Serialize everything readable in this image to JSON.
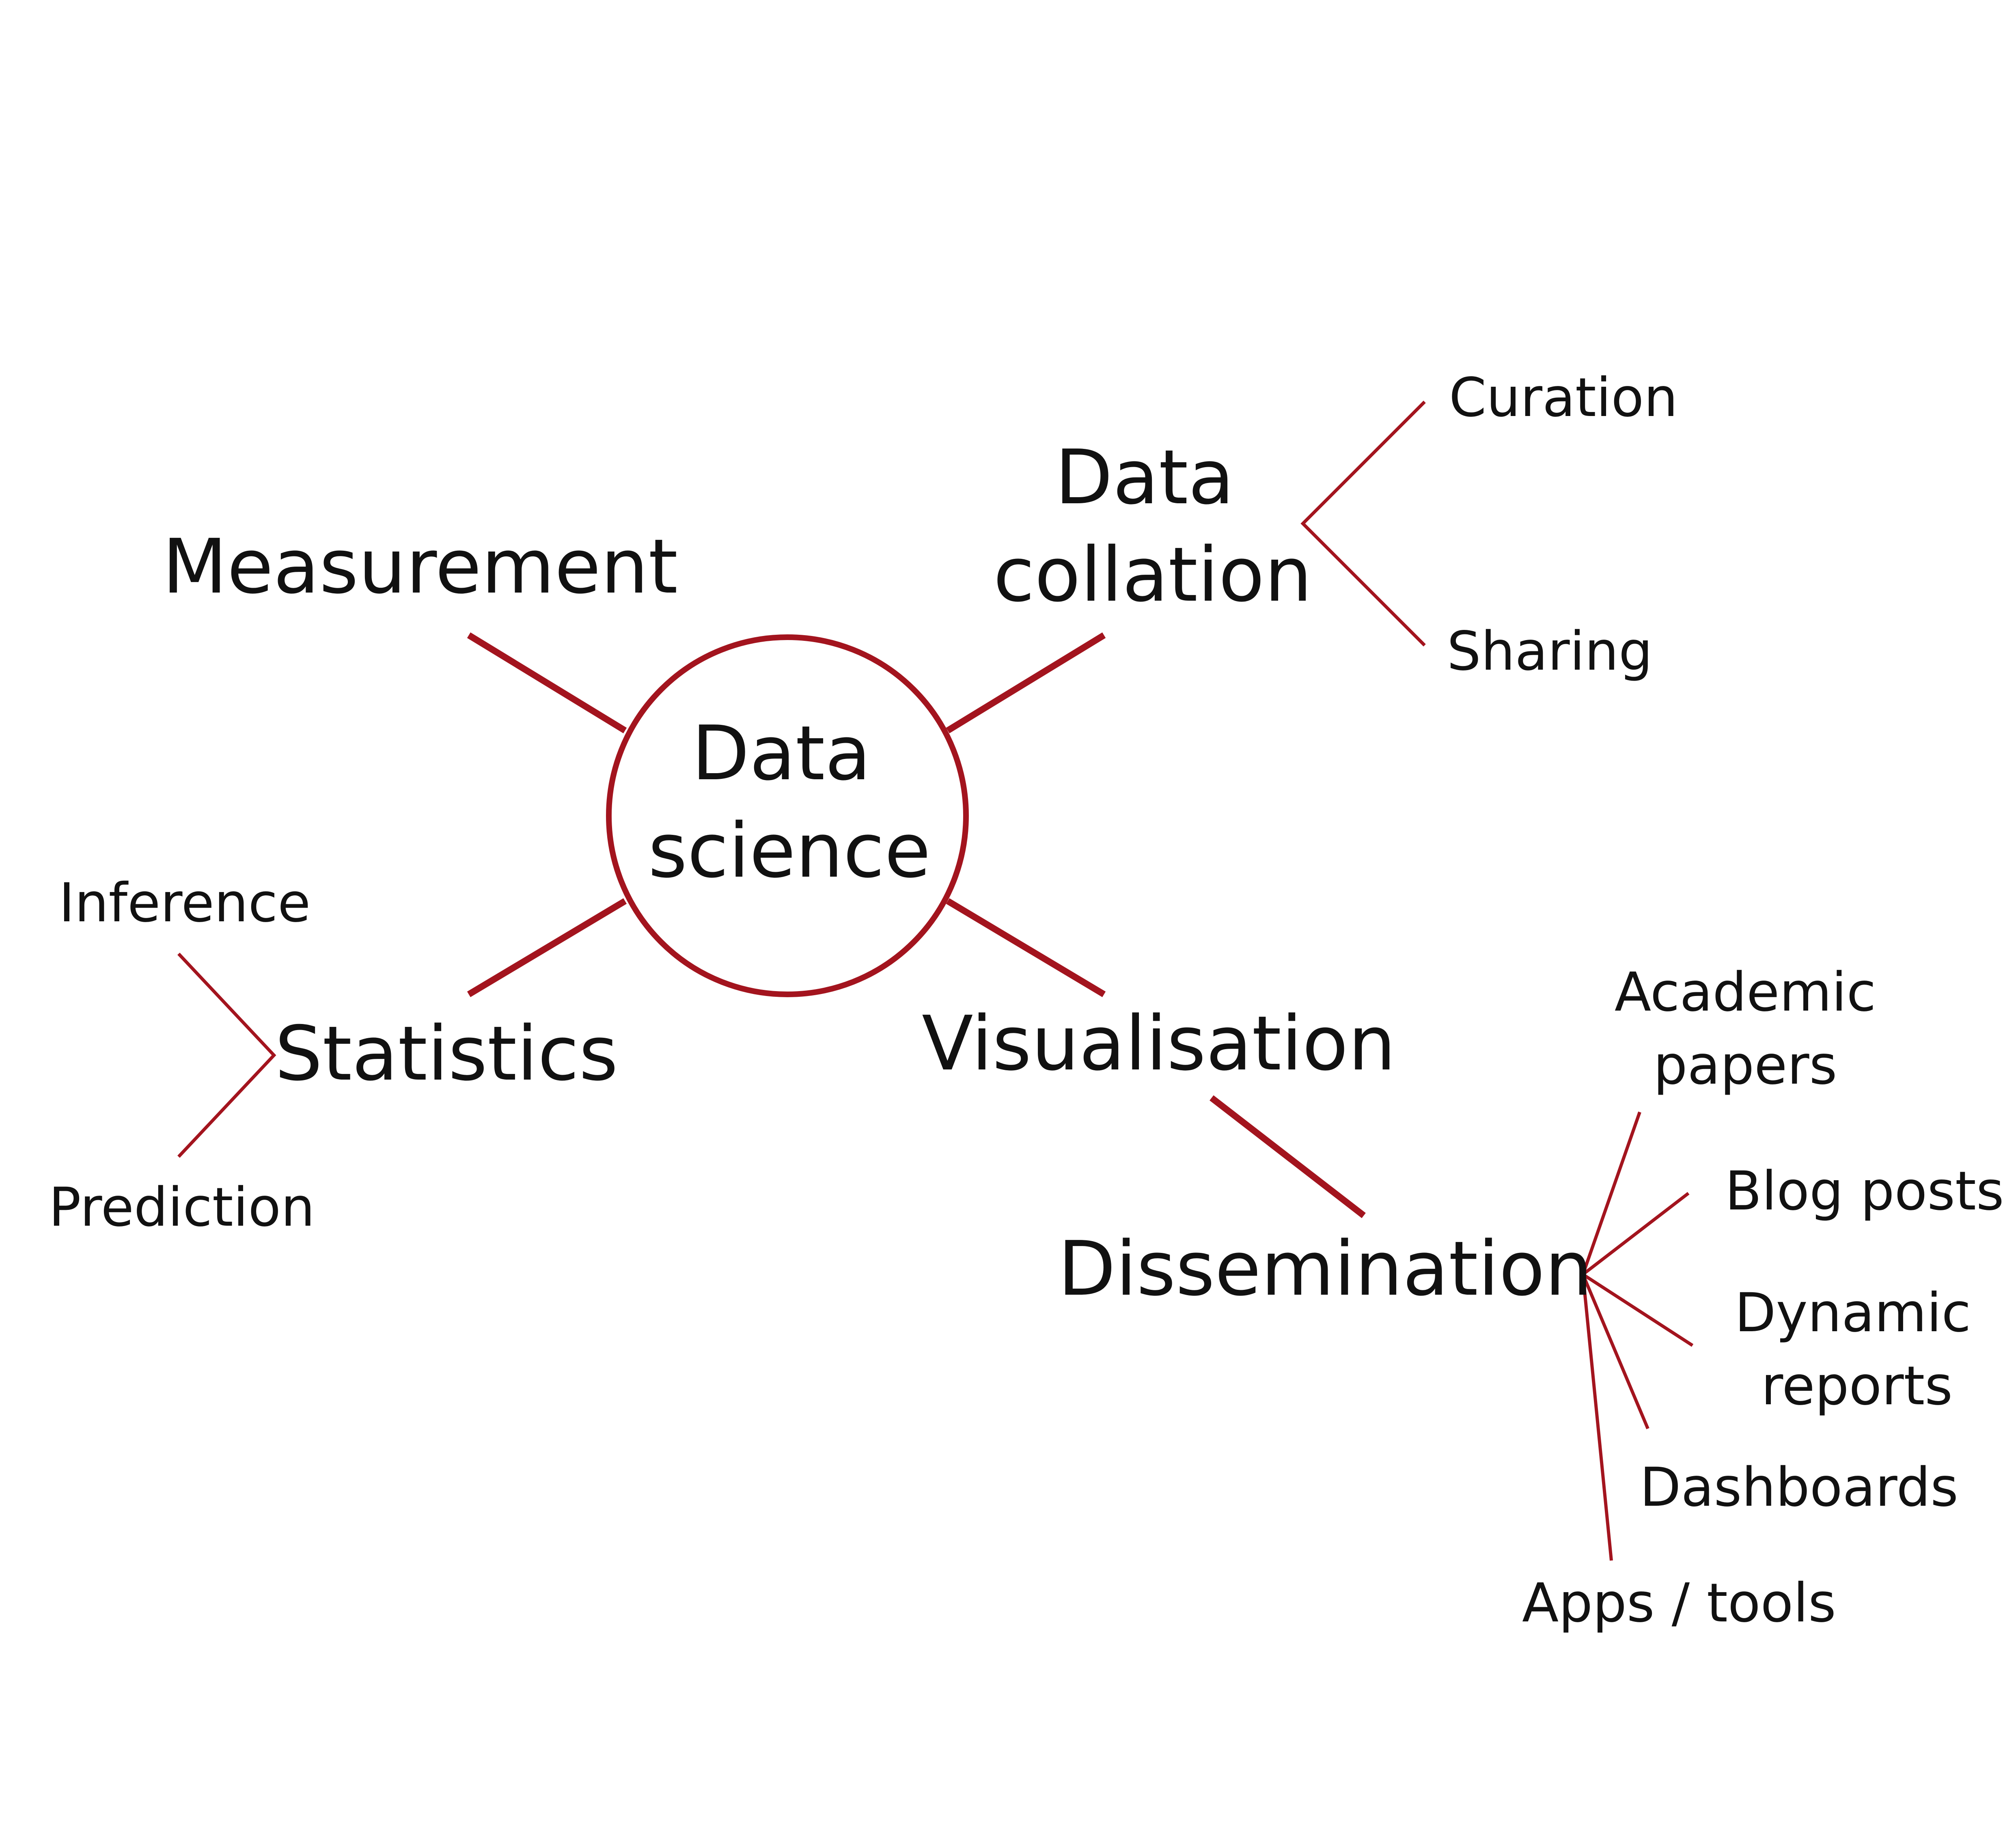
{
  "colors": {
    "line": "#A3141E",
    "text": "#111111",
    "background": "#FFFFFF"
  },
  "center": {
    "line1": "Data",
    "line2": "science"
  },
  "branches": {
    "measurement": "Measurement",
    "data_collation": {
      "line1": "Data",
      "line2": "collation"
    },
    "statistics": "Statistics",
    "visualisation": "Visualisation",
    "dissemination": "Dissemination"
  },
  "sub_nodes": {
    "curation": "Curation",
    "sharing": "Sharing",
    "inference": "Inference",
    "prediction": "Prediction",
    "academic_papers": {
      "line1": "Academic",
      "line2": "papers"
    },
    "blog_posts": "Blog posts",
    "dynamic_reports": {
      "line1": "Dynamic",
      "line2": "reports"
    },
    "dashboards": "Dashboards",
    "apps_tools": "Apps / tools"
  }
}
